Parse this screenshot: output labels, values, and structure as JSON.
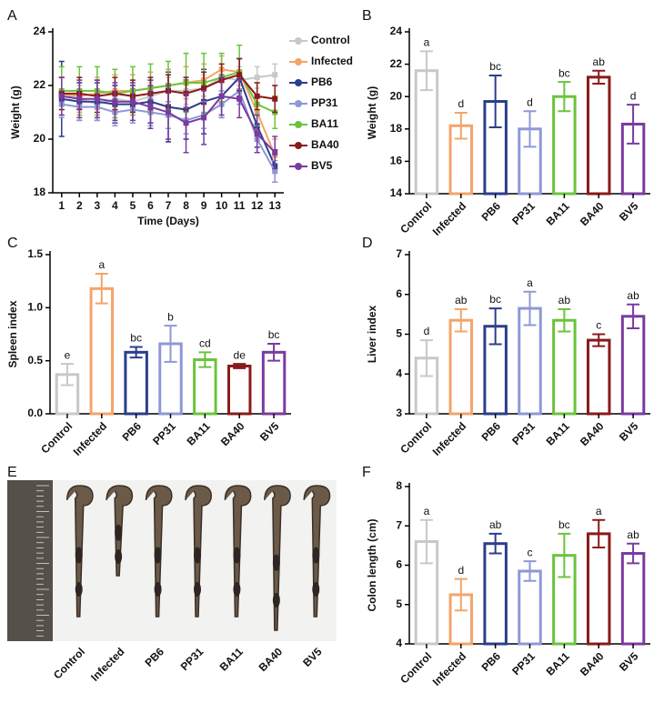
{
  "chart_data": [
    {
      "type": "line",
      "panel": "A",
      "xlabel": "Time (Days)",
      "ylabel": "Weight (g)",
      "x": [
        1,
        2,
        3,
        4,
        5,
        6,
        7,
        8,
        9,
        10,
        11,
        12,
        13
      ],
      "xlim": [
        0.5,
        13.5
      ],
      "xticks": [
        1,
        2,
        3,
        4,
        5,
        6,
        7,
        8,
        9,
        10,
        11,
        12,
        13
      ],
      "ylim": [
        18,
        24
      ],
      "yticks": [
        18,
        20,
        22,
        24
      ],
      "series": [
        {
          "name": "Control",
          "color": "#c8c8c8",
          "values": [
            21.7,
            21.5,
            21.3,
            21.5,
            21.4,
            21.6,
            21.8,
            21.8,
            21.9,
            22.3,
            22.2,
            22.3,
            22.4
          ],
          "errors": [
            0.6,
            0.5,
            0.5,
            0.5,
            0.5,
            0.5,
            0.5,
            0.5,
            0.5,
            0.5,
            0.5,
            0.4,
            0.4
          ]
        },
        {
          "name": "Infected",
          "color": "#f4a46a",
          "values": [
            21.7,
            21.6,
            21.7,
            21.8,
            21.8,
            21.9,
            22.0,
            22.1,
            22.2,
            22.6,
            22.5,
            21.0,
            19.4
          ],
          "errors": [
            0.6,
            0.6,
            0.6,
            0.6,
            0.6,
            0.6,
            0.6,
            0.6,
            0.6,
            0.5,
            0.5,
            0.6,
            0.6
          ]
        },
        {
          "name": "PB6",
          "color": "#2b3e8c",
          "values": [
            21.5,
            21.4,
            21.4,
            21.3,
            21.3,
            21.4,
            21.2,
            21.1,
            21.4,
            21.6,
            22.3,
            20.5,
            19.0
          ],
          "errors": [
            1.4,
            0.7,
            0.7,
            0.7,
            0.7,
            0.8,
            1.3,
            1.1,
            1.2,
            0.8,
            0.7,
            0.8,
            0.6
          ]
        },
        {
          "name": "PP31",
          "color": "#8e98d6",
          "values": [
            21.3,
            21.2,
            21.2,
            21.0,
            21.1,
            21.0,
            20.9,
            20.7,
            20.9,
            21.3,
            21.8,
            20.0,
            18.8
          ],
          "errors": [
            0.5,
            0.5,
            0.5,
            0.5,
            0.5,
            0.5,
            0.5,
            0.5,
            0.5,
            0.5,
            0.5,
            0.5,
            0.4
          ]
        },
        {
          "name": "BA11",
          "color": "#6ac43c",
          "values": [
            21.8,
            21.8,
            21.8,
            21.7,
            21.8,
            21.9,
            22.0,
            22.1,
            22.1,
            22.3,
            22.5,
            21.3,
            21.0
          ],
          "errors": [
            0.9,
            0.9,
            0.9,
            0.9,
            0.9,
            0.9,
            0.9,
            1.1,
            1.1,
            0.9,
            1.0,
            0.8,
            0.6
          ]
        },
        {
          "name": "BA40",
          "color": "#8b1a1a",
          "values": [
            21.7,
            21.7,
            21.6,
            21.7,
            21.6,
            21.7,
            21.8,
            21.7,
            21.9,
            22.2,
            22.4,
            21.6,
            21.5
          ],
          "errors": [
            0.6,
            0.6,
            0.6,
            0.6,
            0.6,
            0.6,
            0.6,
            0.6,
            0.6,
            0.6,
            0.6,
            0.5,
            0.5
          ]
        },
        {
          "name": "BV5",
          "color": "#7b3aa0",
          "values": [
            21.6,
            21.5,
            21.5,
            21.4,
            21.4,
            21.2,
            21.0,
            20.6,
            20.8,
            21.6,
            21.5,
            20.2,
            19.5
          ],
          "errors": [
            0.7,
            0.7,
            0.7,
            0.7,
            0.7,
            0.8,
            1.0,
            1.1,
            1.0,
            0.7,
            0.7,
            0.7,
            0.6
          ]
        }
      ]
    },
    {
      "type": "bar",
      "panel": "B",
      "ylabel": "Weight (g)",
      "categories": [
        "Control",
        "Infected",
        "PB6",
        "PP31",
        "BA11",
        "BA40",
        "BV5"
      ],
      "colors": [
        "#c8c8c8",
        "#f4a46a",
        "#2b3e8c",
        "#8e98d6",
        "#6ac43c",
        "#8b1a1a",
        "#7b3aa0"
      ],
      "values": [
        21.6,
        18.2,
        19.7,
        18.0,
        20.0,
        21.2,
        18.3
      ],
      "errors": [
        1.2,
        0.8,
        1.6,
        1.1,
        0.9,
        0.4,
        1.2
      ],
      "letters": [
        "a",
        "d",
        "bc",
        "d",
        "bc",
        "ab",
        "d"
      ],
      "ylim": [
        14,
        24
      ],
      "yticks": [
        14,
        16,
        18,
        20,
        22,
        24
      ]
    },
    {
      "type": "bar",
      "panel": "C",
      "ylabel": "Spleen index",
      "categories": [
        "Control",
        "Infected",
        "PB6",
        "PP31",
        "BA11",
        "BA40",
        "BV5"
      ],
      "colors": [
        "#c8c8c8",
        "#f4a46a",
        "#2b3e8c",
        "#8e98d6",
        "#6ac43c",
        "#8b1a1a",
        "#7b3aa0"
      ],
      "values": [
        0.37,
        1.18,
        0.58,
        0.66,
        0.51,
        0.45,
        0.58
      ],
      "errors": [
        0.1,
        0.14,
        0.05,
        0.17,
        0.07,
        0.02,
        0.08
      ],
      "letters": [
        "e",
        "a",
        "bc",
        "b",
        "cd",
        "de",
        "bc"
      ],
      "ylim": [
        0,
        1.5
      ],
      "yticks": [
        {
          "value": 0,
          "label": "0.0"
        },
        0.5,
        {
          "value": 1,
          "label": "1.0"
        },
        1.5
      ]
    },
    {
      "type": "bar",
      "panel": "D",
      "ylabel": "Liver index",
      "categories": [
        "Control",
        "Infected",
        "PB6",
        "PP31",
        "BA11",
        "BA40",
        "BV5"
      ],
      "colors": [
        "#c8c8c8",
        "#f4a46a",
        "#2b3e8c",
        "#8e98d6",
        "#6ac43c",
        "#8b1a1a",
        "#7b3aa0"
      ],
      "values": [
        4.4,
        5.35,
        5.2,
        5.65,
        5.35,
        4.85,
        5.45
      ],
      "errors": [
        0.45,
        0.28,
        0.45,
        0.42,
        0.28,
        0.15,
        0.3
      ],
      "letters": [
        "d",
        "ab",
        "bc",
        "a",
        "ab",
        "c",
        "ab"
      ],
      "ylim": [
        3,
        7
      ],
      "yticks": [
        3,
        4,
        5,
        6,
        7
      ]
    },
    {
      "type": "image",
      "panel": "E",
      "categories": [
        "Control",
        "Infected",
        "PB6",
        "PP31",
        "BA11",
        "BA40",
        "BV5"
      ]
    },
    {
      "type": "bar",
      "panel": "F",
      "ylabel": "Colon length (cm)",
      "categories": [
        "Control",
        "Infected",
        "PB6",
        "PP31",
        "BA11",
        "BA40",
        "BV5"
      ],
      "colors": [
        "#c8c8c8",
        "#f4a46a",
        "#2b3e8c",
        "#8e98d6",
        "#6ac43c",
        "#8b1a1a",
        "#7b3aa0"
      ],
      "values": [
        6.6,
        5.25,
        6.55,
        5.85,
        6.25,
        6.8,
        6.3
      ],
      "errors": [
        0.55,
        0.4,
        0.25,
        0.25,
        0.55,
        0.35,
        0.25
      ],
      "letters": [
        "a",
        "d",
        "ab",
        "c",
        "bc",
        "a",
        "ab"
      ],
      "ylim": [
        4,
        8
      ],
      "yticks": [
        4,
        5,
        6,
        7,
        8
      ]
    }
  ]
}
